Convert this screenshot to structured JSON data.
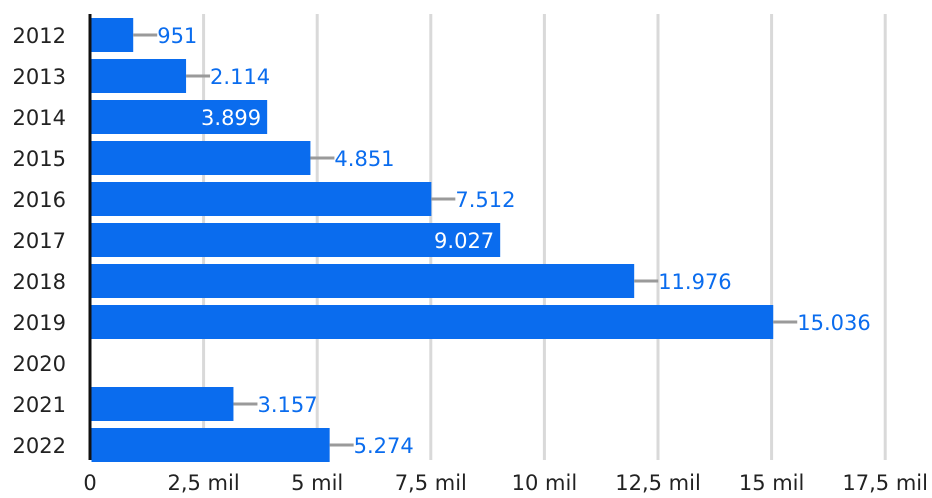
{
  "chart_data": {
    "type": "bar",
    "orientation": "horizontal",
    "categories": [
      "2012",
      "2013",
      "2014",
      "2015",
      "2016",
      "2017",
      "2018",
      "2019",
      "2020",
      "2021",
      "2022"
    ],
    "values": [
      951,
      2114,
      3899,
      4851,
      7512,
      9027,
      11976,
      15036,
      null,
      3157,
      5274
    ],
    "value_labels": [
      "951",
      "2.114",
      "3.899",
      "4.851",
      "7.512",
      "9.027",
      "11.976",
      "15.036",
      "",
      "3.157",
      "5.274"
    ],
    "label_inside": [
      false,
      false,
      true,
      false,
      false,
      true,
      false,
      false,
      false,
      false,
      false
    ],
    "x_ticks": [
      0,
      2500,
      5000,
      7500,
      10000,
      12500,
      15000,
      17500
    ],
    "x_tick_labels": [
      "0",
      "2,5 mil",
      "5 mil",
      "7,5 mil",
      "10 mil",
      "12,5 mil",
      "15 mil",
      "17,5 mil"
    ],
    "xlim": [
      0,
      17500
    ],
    "grid": true,
    "title": "",
    "xlabel": "",
    "ylabel": ""
  },
  "colors": {
    "bar": "#0a6cee",
    "grid": "#d9d9d9",
    "axis": "#111111",
    "leader": "#9a9a9a",
    "label_outside": "#0a6cee",
    "label_inside": "#ffffff"
  }
}
